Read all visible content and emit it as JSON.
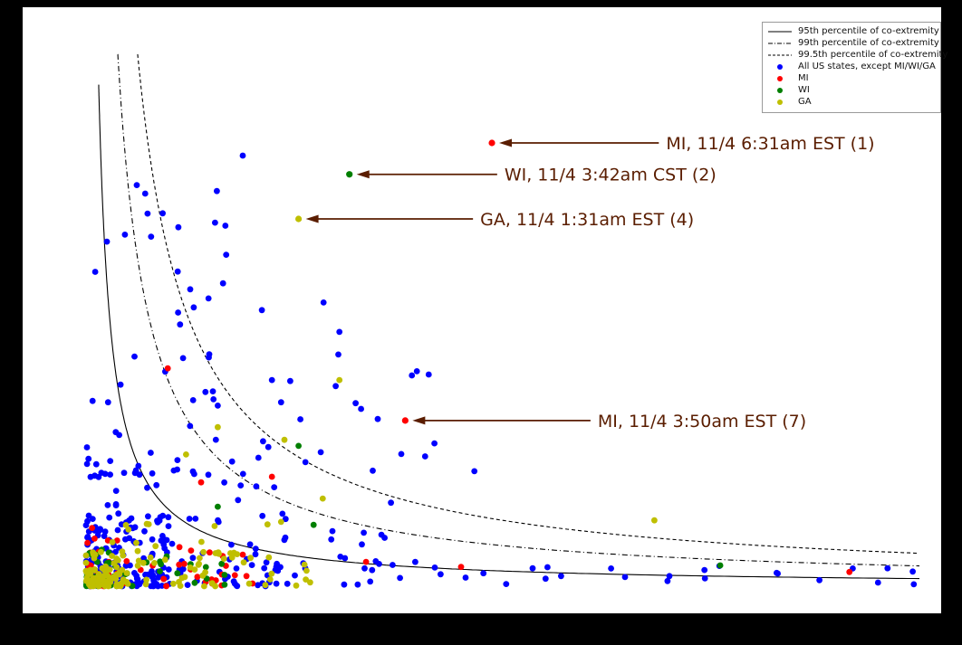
{
  "window": {
    "background": "#000000"
  },
  "figure": {
    "background": "#ffffff"
  },
  "chart_data": {
    "type": "scatter",
    "title": "",
    "seed": 20201104,
    "curve_color": "#000000",
    "annotation_color": "#5a1d00",
    "x_range": [
      0,
      1
    ],
    "y_range": [
      0,
      1
    ],
    "grid": false,
    "legend_position": "top-right",
    "curves": [
      {
        "name": "95th percentile of co-extremity",
        "style": "solid",
        "c": 0.015,
        "y_max": 0.99
      },
      {
        "name": "99th percentile of co-extremity",
        "style": "dashdot",
        "c": 0.04,
        "y_max": 1.05
      },
      {
        "name": "99.5th percentile of co-extremity",
        "style": "dashed",
        "c": 0.065,
        "y_max": 1.05
      }
    ],
    "legend": [
      {
        "type": "line",
        "style": "solid",
        "label": "95th percentile of co-extremity"
      },
      {
        "type": "line",
        "style": "dashdot",
        "label": "99th percentile of co-extremity"
      },
      {
        "type": "line",
        "style": "dashed",
        "label": "99.5th percentile of co-extremity"
      },
      {
        "type": "dot",
        "color": "#0000ff",
        "label": "All US states, except MI/WI/GA"
      },
      {
        "type": "dot",
        "color": "#ff0000",
        "label": "MI"
      },
      {
        "type": "dot",
        "color": "#007f00",
        "label": "WI"
      },
      {
        "type": "dot",
        "color": "#bfbf00",
        "label": "GA"
      }
    ],
    "annotations": [
      {
        "label": "MI, 11/4 6:31am EST (1)",
        "series": "mi",
        "point": [
          0.487,
          0.875
        ],
        "text_x": 0.696
      },
      {
        "label": "WI, 11/4 3:42am CST (2)",
        "series": "wi",
        "point": [
          0.316,
          0.813
        ],
        "text_x": 0.502
      },
      {
        "label": "GA, 11/4 1:31am EST (4)",
        "series": "ga",
        "point": [
          0.255,
          0.725
        ],
        "text_x": 0.473
      },
      {
        "label": "MI, 11/4 3:50am EST (7)",
        "series": "mi",
        "point": [
          0.383,
          0.327
        ],
        "text_x": 0.614
      }
    ],
    "series": [
      {
        "id": "us",
        "name": "All US states, except MI/WI/GA",
        "color": "#0000ff",
        "clusters": [
          {
            "n": 120,
            "x": [
              0,
              0.1
            ],
            "y": [
              0,
              0.14
            ],
            "px": 1.2,
            "py": 1.6
          },
          {
            "n": 80,
            "x": [
              0,
              0.24
            ],
            "y": [
              0,
              0.3
            ],
            "px": 1.6,
            "py": 2.2
          },
          {
            "n": 38,
            "x": [
              0.005,
              0.17
            ],
            "y": [
              0.22,
              0.82
            ],
            "px": 1.2,
            "py": 2.0
          },
          {
            "n": 30,
            "x": [
              0.14,
              0.42
            ],
            "y": [
              0.04,
              0.5
            ],
            "px": 1.3,
            "py": 1.9
          },
          {
            "n": 32,
            "x": [
              0.22,
              1.0
            ],
            "y": [
              0.003,
              0.05
            ],
            "px": 1.9,
            "py": 1.4
          },
          {
            "n": 40,
            "x": [
              0,
              0.35
            ],
            "y": [
              0,
              0.16
            ],
            "px": 2.0,
            "py": 2.0
          }
        ],
        "points": [
          [
            0.188,
            0.85
          ],
          [
            0.157,
            0.78
          ],
          [
            0.071,
            0.775
          ],
          [
            0.092,
            0.736
          ],
          [
            0.078,
            0.69
          ],
          [
            0.11,
            0.621
          ],
          [
            0.125,
            0.586
          ],
          [
            0.147,
            0.568
          ],
          [
            0.211,
            0.545
          ],
          [
            0.304,
            0.502
          ],
          [
            0.35,
            0.33
          ],
          [
            0.391,
            0.416
          ],
          [
            0.418,
            0.282
          ],
          [
            0.466,
            0.227
          ],
          [
            0.223,
            0.407
          ],
          [
            0.245,
            0.405
          ],
          [
            0.234,
            0.363
          ],
          [
            0.285,
            0.56
          ],
          [
            0.33,
            0.35
          ],
          [
            0.57,
            0.02
          ],
          [
            0.63,
            0.035
          ],
          [
            0.7,
            0.02
          ],
          [
            0.76,
            0.04
          ],
          [
            0.83,
            0.025
          ],
          [
            0.88,
            0.012
          ],
          [
            0.92,
            0.035
          ],
          [
            0.992,
            0.029
          ]
        ]
      },
      {
        "id": "mi",
        "name": "MI",
        "color": "#ff0000",
        "clusters": [
          {
            "n": 40,
            "x": [
              0,
              0.2
            ],
            "y": [
              0,
              0.12
            ],
            "px": 2.0,
            "py": 2.0
          },
          {
            "n": 20,
            "x": [
              0,
              0.07
            ],
            "y": [
              0,
              0.05
            ],
            "px": 1.3,
            "py": 1.3
          }
        ],
        "points": [
          [
            0.098,
            0.43
          ],
          [
            0.138,
            0.205
          ],
          [
            0.223,
            0.216
          ],
          [
            0.336,
            0.048
          ],
          [
            0.45,
            0.038
          ],
          [
            0.916,
            0.028
          ]
        ]
      },
      {
        "id": "wi",
        "name": "WI",
        "color": "#007f00",
        "clusters": [
          {
            "n": 35,
            "x": [
              0,
              0.18
            ],
            "y": [
              0,
              0.08
            ],
            "px": 2.0,
            "py": 1.8
          },
          {
            "n": 18,
            "x": [
              0,
              0.06
            ],
            "y": [
              0,
              0.04
            ],
            "px": 1.2,
            "py": 1.2
          }
        ],
        "points": [
          [
            0.255,
            0.277
          ],
          [
            0.761,
            0.041
          ],
          [
            0.158,
            0.157
          ],
          [
            0.273,
            0.121
          ]
        ]
      },
      {
        "id": "ga",
        "name": "GA",
        "color": "#bfbf00",
        "clusters": [
          {
            "n": 75,
            "x": [
              0,
              0.28
            ],
            "y": [
              0,
              0.07
            ],
            "px": 2.2,
            "py": 1.8
          },
          {
            "n": 45,
            "x": [
              0,
              0.055
            ],
            "y": [
              0,
              0.035
            ],
            "px": 1.0,
            "py": 1.0
          },
          {
            "n": 20,
            "x": [
              0.03,
              0.22
            ],
            "y": [
              0.05,
              0.14
            ],
            "px": 1.8,
            "py": 1.8
          }
        ],
        "points": [
          [
            0.304,
            0.407
          ],
          [
            0.682,
            0.13
          ],
          [
            0.238,
            0.289
          ],
          [
            0.284,
            0.173
          ],
          [
            0.158,
            0.314
          ],
          [
            0.234,
            0.127
          ],
          [
            0.12,
            0.26
          ]
        ]
      }
    ]
  }
}
